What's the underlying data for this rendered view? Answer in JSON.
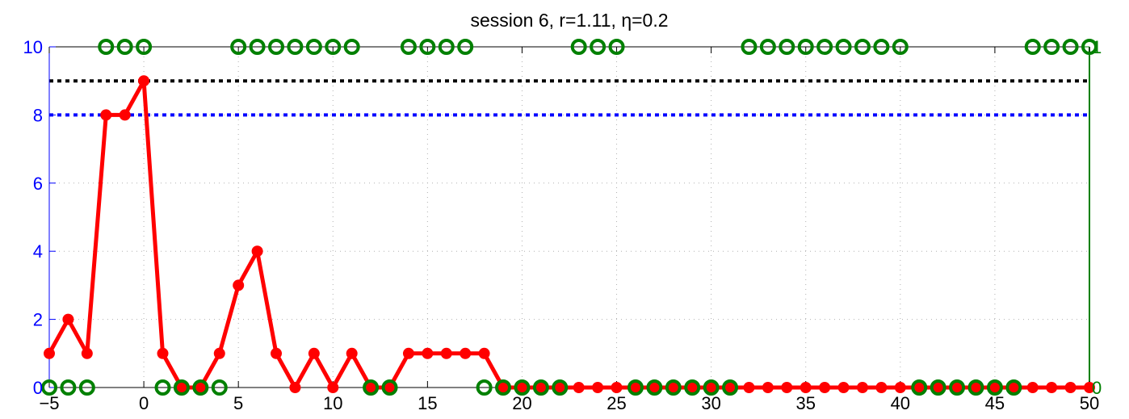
{
  "chart_data": {
    "type": "line",
    "title": "session 6, r=1.11, η=0.2",
    "xlabel": "",
    "ylabel": "",
    "xlim": [
      -5,
      50
    ],
    "ylim": [
      0,
      10
    ],
    "y2lim": [
      0,
      1
    ],
    "grid": true,
    "x_ticks": [
      -5,
      0,
      5,
      10,
      15,
      20,
      25,
      30,
      35,
      40,
      45,
      50
    ],
    "y_ticks": [
      0,
      2,
      4,
      6,
      8,
      10
    ],
    "y2_ticks": [
      0,
      1
    ],
    "x_tick_labels": [
      "−5",
      "0",
      "5",
      "10",
      "15",
      "20",
      "25",
      "30",
      "35",
      "40",
      "45",
      "50"
    ],
    "y_tick_labels": [
      "0",
      "2",
      "4",
      "6",
      "8",
      "10"
    ],
    "y2_tick_labels": [
      "0",
      "1"
    ],
    "series": [
      {
        "axis": "left",
        "style": "line-with-filled-markers",
        "color": "#ff0000",
        "x": [
          -5,
          -4,
          -3,
          -2,
          -1,
          0,
          1,
          2,
          3,
          4,
          5,
          6,
          7,
          8,
          9,
          10,
          11,
          12,
          13,
          14,
          15,
          16,
          17,
          18,
          19,
          20,
          21,
          22,
          23,
          24,
          25,
          26,
          27,
          28,
          29,
          30,
          31,
          32,
          33,
          34,
          35,
          36,
          37,
          38,
          39,
          40,
          41,
          42,
          43,
          44,
          45,
          46,
          47,
          48,
          49,
          50
        ],
        "values": [
          1,
          2,
          1,
          8,
          8,
          9,
          1,
          0,
          0,
          1,
          3,
          4,
          1,
          0,
          1,
          0,
          1,
          0,
          0,
          1,
          1,
          1,
          1,
          1,
          0,
          0,
          0,
          0,
          0,
          0,
          0,
          0,
          0,
          0,
          0,
          0,
          0,
          0,
          0,
          0,
          0,
          0,
          0,
          0,
          0,
          0,
          0,
          0,
          0,
          0,
          0,
          0,
          0,
          0,
          0,
          0
        ]
      },
      {
        "axis": "right",
        "style": "open-circle-markers",
        "color": "#008000",
        "x": [
          -5,
          -4,
          -3,
          -2,
          -1,
          0,
          1,
          2,
          3,
          4,
          5,
          6,
          7,
          8,
          9,
          10,
          11,
          12,
          13,
          14,
          15,
          16,
          17,
          18,
          19,
          20,
          21,
          22,
          23,
          24,
          25,
          26,
          27,
          28,
          29,
          30,
          31,
          32,
          33,
          34,
          35,
          36,
          37,
          38,
          39,
          40,
          41,
          42,
          43,
          44,
          45,
          46,
          47,
          48,
          49,
          50
        ],
        "values": [
          0,
          0,
          0,
          1,
          1,
          1,
          0,
          0,
          0,
          0,
          1,
          1,
          1,
          1,
          1,
          1,
          1,
          0,
          0,
          1,
          1,
          1,
          1,
          0,
          0,
          0,
          0,
          0,
          1,
          1,
          1,
          0,
          0,
          0,
          0,
          0,
          0,
          1,
          1,
          1,
          1,
          1,
          1,
          1,
          1,
          1,
          0,
          0,
          0,
          0,
          0,
          0,
          1,
          1,
          1,
          1
        ]
      }
    ],
    "reference_lines": [
      {
        "y": 9,
        "color": "#000000",
        "style": "dotted"
      },
      {
        "y": 8,
        "color": "#0000ff",
        "style": "dotted"
      }
    ],
    "colors": {
      "left_axis": "#0000ff",
      "right_axis": "#008000",
      "x_axis": "#000000",
      "grid": "#b0b0b0"
    }
  }
}
